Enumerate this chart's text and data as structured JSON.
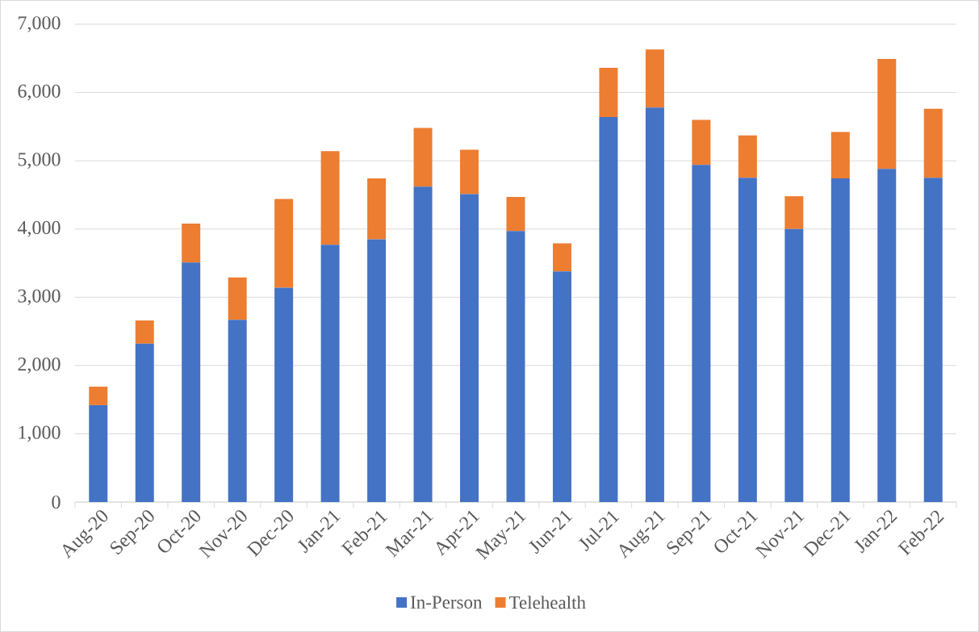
{
  "chart_data": {
    "type": "bar",
    "stacked": true,
    "categories": [
      "Aug-20",
      "Sep-20",
      "Oct-20",
      "Nov-20",
      "Dec-20",
      "Jan-21",
      "Feb-21",
      "Mar-21",
      "Apr-21",
      "May-21",
      "Jun-21",
      "Jul-21",
      "Aug-21",
      "Sep-21",
      "Oct-21",
      "Nov-21",
      "Dec-21",
      "Jan-22",
      "Feb-22"
    ],
    "series": [
      {
        "name": "In-Person",
        "color": "#4472c4",
        "values": [
          1420,
          2320,
          3510,
          2670,
          3140,
          3770,
          3850,
          4620,
          4510,
          3970,
          3380,
          5640,
          5780,
          4940,
          4750,
          4000,
          4740,
          4880,
          4750
        ]
      },
      {
        "name": "Telehealth",
        "color": "#ed7d31",
        "values": [
          270,
          340,
          570,
          620,
          1300,
          1370,
          890,
          860,
          650,
          500,
          410,
          720,
          850,
          660,
          620,
          480,
          680,
          1610,
          1010
        ]
      }
    ],
    "ylim": [
      0,
      7000
    ],
    "yticks": [
      0,
      {
        "value": 1000,
        "label": "1,000"
      },
      {
        "value": 2000,
        "label": "2,000"
      },
      {
        "value": 3000,
        "label": "3,000"
      },
      {
        "value": 4000,
        "label": "4,000"
      },
      {
        "value": 5000,
        "label": "5,000"
      },
      {
        "value": 6000,
        "label": "6,000"
      },
      {
        "value": 7000,
        "label": "7,000"
      }
    ],
    "grid": "y",
    "legend": "bottom"
  }
}
